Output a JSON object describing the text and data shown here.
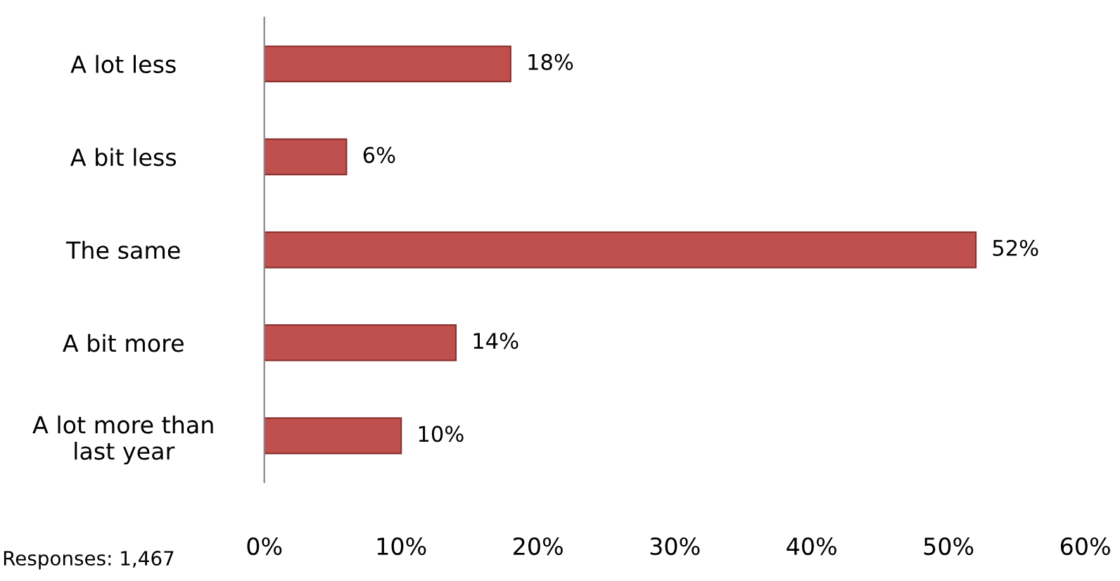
{
  "chart_data": {
    "type": "bar",
    "orientation": "horizontal",
    "categories": [
      "A lot less",
      "A bit less",
      "The same",
      "A bit more",
      "A lot more than\nlast year"
    ],
    "values": [
      18,
      6,
      52,
      14,
      10
    ],
    "value_labels": [
      "18%",
      "6%",
      "52%",
      "14%",
      "10%"
    ],
    "color": "#c0504d",
    "xlim": [
      0,
      60
    ],
    "xticks": [
      {
        "value": 0,
        "label": "0%"
      },
      {
        "value": 10,
        "label": "10%"
      },
      {
        "value": 20,
        "label": "20%"
      },
      {
        "value": 30,
        "label": "30%"
      },
      {
        "value": 40,
        "label": "40%"
      },
      {
        "value": 50,
        "label": "50%"
      },
      {
        "value": 60,
        "label": "60%"
      }
    ],
    "grid": false,
    "legend": false,
    "annotations": [
      "Responses: 1,467"
    ]
  }
}
